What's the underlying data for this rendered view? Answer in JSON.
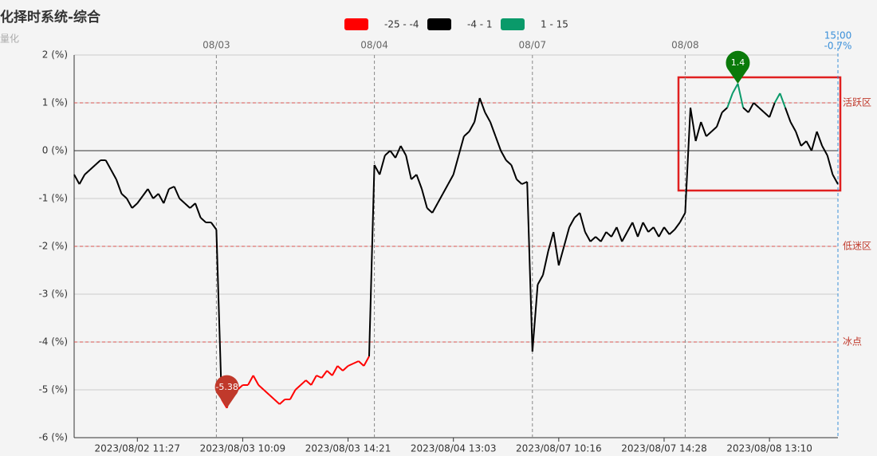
{
  "chart_data": {
    "type": "line",
    "title": "化择时系统-综合",
    "subtitle": "量化",
    "pieces": [
      {
        "min": -25,
        "max": -4,
        "color": "#ff0000",
        "label": "-25 - -4"
      },
      {
        "min": -4,
        "max": 1,
        "color": "#000000",
        "label": "-4 - 1"
      },
      {
        "min": 1,
        "max": 15,
        "color": "#0a9a6a",
        "label": "1 - 15"
      }
    ],
    "categories": [
      null,
      null,
      null,
      null,
      null,
      null,
      null,
      null,
      null,
      null,
      null,
      null,
      "2023/08/02 11:27",
      null,
      null,
      null,
      null,
      null,
      null,
      null,
      null,
      null,
      null,
      null,
      null,
      null,
      null,
      null,
      null,
      null,
      null,
      null,
      "2023/08/03 10:09",
      null,
      null,
      null,
      null,
      null,
      null,
      null,
      null,
      null,
      null,
      null,
      null,
      null,
      null,
      null,
      null,
      null,
      null,
      null,
      "2023/08/03 14:21",
      null,
      null,
      null,
      null,
      null,
      null,
      null,
      null,
      null,
      null,
      null,
      null,
      null,
      null,
      null,
      null,
      null,
      null,
      null,
      "2023/08/04 13:03",
      null,
      null,
      null,
      null,
      null,
      null,
      null,
      null,
      null,
      null,
      null,
      null,
      null,
      null,
      null,
      null,
      null,
      null,
      null,
      "2023/08/07 10:16",
      null,
      null,
      null,
      null,
      null,
      null,
      null,
      null,
      null,
      null,
      null,
      null,
      null,
      null,
      null,
      null,
      null,
      null,
      null,
      "2023/08/07 14:28",
      null,
      null,
      null,
      null,
      null,
      null,
      null,
      null,
      null,
      null,
      null,
      null,
      null,
      null,
      null,
      null,
      null,
      null,
      null,
      "2023/08/08 13:10",
      null,
      null,
      null,
      null,
      null,
      null,
      null,
      null,
      null,
      null,
      null,
      null,
      null
    ],
    "top_categories": [
      null,
      null,
      null,
      null,
      null,
      null,
      null,
      null,
      null,
      null,
      null,
      null,
      null,
      null,
      null,
      null,
      null,
      null,
      null,
      null,
      null,
      null,
      null,
      null,
      null,
      null,
      null,
      "08/03",
      null,
      null,
      null,
      null,
      null,
      null,
      null,
      null,
      null,
      null,
      null,
      null,
      null,
      null,
      null,
      null,
      null,
      null,
      null,
      null,
      null,
      null,
      null,
      null,
      null,
      null,
      null,
      null,
      null,
      "08/04",
      null,
      null,
      null,
      null,
      null,
      null,
      null,
      null,
      null,
      null,
      null,
      null,
      null,
      null,
      null,
      null,
      null,
      null,
      null,
      null,
      null,
      null,
      null,
      null,
      null,
      null,
      null,
      null,
      null,
      "08/07",
      null,
      null,
      null,
      null,
      null,
      null,
      null,
      null,
      null,
      null,
      null,
      null,
      null,
      null,
      null,
      null,
      null,
      null,
      null,
      null,
      null,
      null,
      null,
      null,
      null,
      null,
      null,
      null,
      "08/08",
      null,
      null,
      null,
      null,
      null,
      null,
      null,
      null,
      null,
      null,
      null,
      null,
      null,
      null,
      null,
      null,
      null,
      null,
      null,
      null,
      null,
      null,
      null,
      null,
      null,
      null,
      null,
      null,
      null
    ],
    "values": [
      -0.5,
      -0.7,
      -0.5,
      -0.4,
      -0.3,
      -0.2,
      -0.2,
      -0.4,
      -0.6,
      -0.9,
      -1.0,
      -1.2,
      -1.1,
      -0.95,
      -0.8,
      -1.0,
      -0.9,
      -1.1,
      -0.8,
      -0.75,
      -1.0,
      -1.1,
      -1.2,
      -1.1,
      -1.4,
      -1.5,
      -1.5,
      -1.65,
      -5.2,
      -5.38,
      -5.0,
      -5.0,
      -4.9,
      -4.9,
      -4.7,
      -4.9,
      -5.0,
      -5.1,
      -5.2,
      -5.3,
      -5.2,
      -5.2,
      -5.0,
      -4.9,
      -4.8,
      -4.9,
      -4.7,
      -4.75,
      -4.6,
      -4.7,
      -4.5,
      -4.6,
      -4.5,
      -4.45,
      -4.4,
      -4.5,
      -4.3,
      -0.3,
      -0.5,
      -0.1,
      0.0,
      -0.15,
      0.1,
      -0.1,
      -0.6,
      -0.5,
      -0.8,
      -1.2,
      -1.3,
      -1.1,
      -0.9,
      -0.7,
      -0.5,
      -0.1,
      0.3,
      0.4,
      0.6,
      1.1,
      0.8,
      0.6,
      0.3,
      0.0,
      -0.2,
      -0.3,
      -0.6,
      -0.7,
      -0.65,
      -4.2,
      -2.8,
      -2.6,
      -2.1,
      -1.7,
      -2.4,
      -2.0,
      -1.6,
      -1.4,
      -1.3,
      -1.7,
      -1.9,
      -1.8,
      -1.9,
      -1.7,
      -1.8,
      -1.6,
      -1.9,
      -1.7,
      -1.5,
      -1.8,
      -1.5,
      -1.7,
      -1.6,
      -1.8,
      -1.6,
      -1.75,
      -1.65,
      -1.5,
      -1.3,
      0.9,
      0.2,
      0.6,
      0.3,
      0.4,
      0.5,
      0.8,
      0.9,
      1.2,
      1.4,
      0.9,
      0.8,
      1.0,
      0.9,
      0.8,
      0.7,
      1.0,
      1.2,
      0.9,
      0.6,
      0.4,
      0.1,
      0.2,
      0.0,
      0.4,
      0.1,
      -0.1,
      -0.5,
      -0.7
    ],
    "end_marker": {
      "time": "15:00",
      "value": -0.7,
      "label": "-0.7%"
    },
    "mark_lines": [
      {
        "value": 1,
        "label": "活跃区"
      },
      {
        "value": -2,
        "label": "低迷区"
      },
      {
        "value": -4,
        "label": "冰点"
      }
    ],
    "ylim": [
      -6,
      2
    ],
    "yticks": [
      {
        "value": -6,
        "label": "-6 (%)"
      },
      {
        "value": -5,
        "label": "-5 (%)"
      },
      {
        "value": -4,
        "label": "-4 (%)"
      },
      {
        "value": -3,
        "label": "-3 (%)"
      },
      {
        "value": -2,
        "label": "-2 (%)"
      },
      {
        "value": -1,
        "label": "-1 (%)"
      },
      {
        "value": 0,
        "label": "0 (%)"
      },
      {
        "value": 1,
        "label": "1 (%)"
      },
      {
        "value": 2,
        "label": "2 (%)"
      }
    ],
    "grid": true
  }
}
